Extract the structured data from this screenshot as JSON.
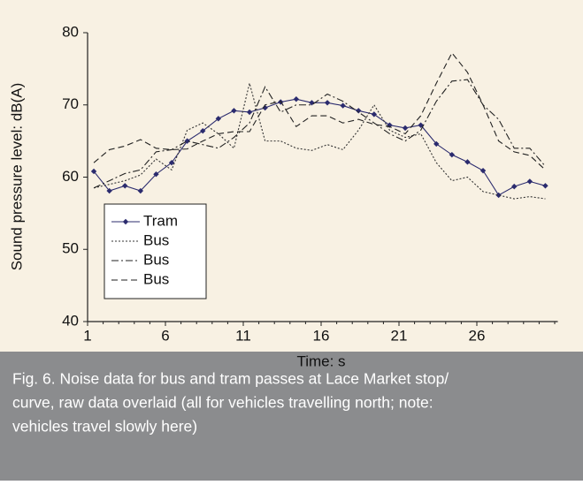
{
  "chart_data": {
    "type": "line",
    "x_label": "Time: s",
    "y_label": "Sound pressure level: dB(A)",
    "x": [
      1.4,
      2.4,
      3.4,
      4.4,
      5.4,
      6.4,
      7.4,
      8.4,
      9.4,
      10.4,
      11.4,
      12.4,
      13.4,
      14.4,
      15.4,
      16.4,
      17.4,
      18.4,
      19.4,
      20.4,
      21.4,
      22.4,
      23.4,
      24.4,
      25.4,
      26.4,
      27.4,
      28.4,
      29.4,
      30.4
    ],
    "series": [
      {
        "name": "Tram",
        "color": "#2b2b6e",
        "dash": "none",
        "marker": "diamond",
        "values": [
          60.8,
          58.1,
          58.8,
          58.1,
          60.4,
          62.0,
          65.0,
          66.4,
          68.1,
          69.2,
          69.0,
          69.6,
          70.4,
          70.8,
          70.3,
          70.3,
          69.9,
          69.2,
          68.7,
          67.2,
          66.8,
          67.2,
          64.6,
          63.1,
          62.1,
          60.9,
          57.5,
          58.7,
          59.4,
          58.8
        ]
      },
      {
        "name": "Bus",
        "color": "#333333",
        "dash": "2 2",
        "marker": "none",
        "values": [
          58.5,
          59.0,
          59.5,
          60.3,
          62.5,
          61.0,
          66.5,
          67.5,
          66.0,
          64.0,
          73.0,
          65.0,
          65.0,
          64.0,
          63.7,
          64.5,
          63.8,
          66.5,
          70.0,
          66.5,
          65.5,
          66.0,
          62.0,
          59.5,
          60.0,
          58.0,
          57.5,
          57.0,
          57.3,
          57.0
        ]
      },
      {
        "name": "Bus",
        "color": "#222222",
        "dash": "8 3 2 3",
        "marker": "none",
        "values": [
          58.5,
          59.5,
          60.5,
          61.0,
          63.5,
          63.8,
          65.0,
          64.5,
          64.0,
          65.5,
          67.5,
          72.5,
          69.0,
          70.0,
          70.0,
          71.5,
          70.5,
          69.0,
          67.5,
          66.0,
          65.0,
          66.5,
          70.5,
          73.3,
          73.5,
          70.0,
          68.0,
          64.0,
          64.0,
          61.5
        ]
      },
      {
        "name": "Bus",
        "color": "#222222",
        "dash": "7 4",
        "marker": "none",
        "values": [
          62.0,
          63.8,
          64.3,
          65.2,
          64.0,
          63.8,
          63.9,
          65.0,
          66.0,
          66.3,
          66.3,
          70.0,
          70.5,
          67.0,
          68.5,
          68.5,
          67.5,
          68.0,
          67.3,
          67.0,
          66.0,
          68.5,
          73.0,
          77.2,
          74.5,
          70.0,
          65.0,
          63.5,
          63.0,
          61.0
        ]
      }
    ],
    "xlim": [
      1,
      31.2
    ],
    "xticks": [
      1,
      6,
      11,
      16,
      21,
      26
    ],
    "ylim": [
      40,
      80
    ],
    "yticks": [
      40,
      50,
      60,
      70,
      80
    ],
    "grid": false,
    "legend": "lower-left",
    "caption": [
      "Fig. 6. Noise data for bus and tram passes at Lace Market stop/",
      "curve, raw data overlaid (all for vehicles travelling north; note:",
      "vehicles travel slowly here)"
    ]
  }
}
